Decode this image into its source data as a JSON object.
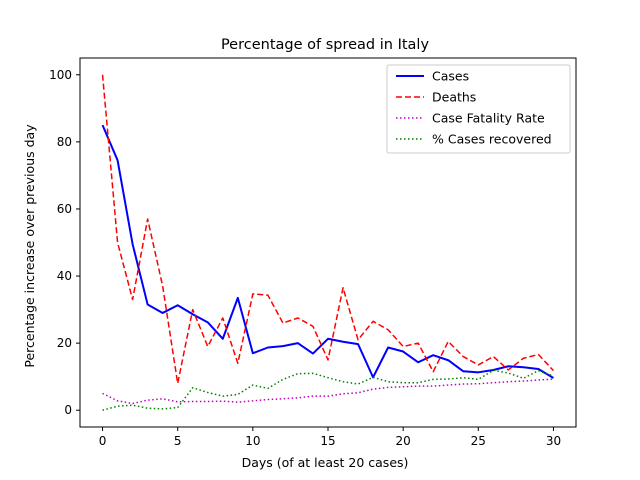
{
  "chart_data": {
    "type": "line",
    "title": "Percentage of spread in Italy",
    "xlabel": "Days (of at least 20 cases)",
    "ylabel": "Percentage increase over previous day",
    "xlim": [
      -1.5,
      31.5
    ],
    "ylim": [
      -5,
      105
    ],
    "xticks": [
      0,
      5,
      10,
      15,
      20,
      25,
      30
    ],
    "yticks": [
      0,
      20,
      40,
      60,
      80,
      100
    ],
    "grid": false,
    "legend_position": "top-right",
    "x": [
      0,
      1,
      2,
      3,
      4,
      5,
      6,
      7,
      8,
      9,
      10,
      11,
      12,
      13,
      14,
      15,
      16,
      17,
      18,
      19,
      20,
      21,
      22,
      23,
      24,
      25,
      26,
      27,
      28,
      29,
      30
    ],
    "series": [
      {
        "name": "Cases",
        "color": "#0000ff",
        "style": "solid",
        "values": [
          85,
          74.5,
          49.5,
          31.5,
          29,
          31.3,
          28.6,
          26.2,
          21.3,
          33.5,
          17,
          18.7,
          19.1,
          20,
          16.9,
          21.3,
          20.4,
          19.7,
          9.8,
          18.7,
          17.5,
          14.3,
          16.4,
          14.9,
          11.6,
          11.3,
          12,
          13.1,
          12.8,
          12.3,
          9.6
        ]
      },
      {
        "name": "Deaths",
        "color": "#ff0000",
        "style": "dashed",
        "values": [
          100,
          50,
          33,
          57,
          37,
          8,
          30,
          19,
          27.5,
          14,
          34.7,
          34.3,
          26,
          27.5,
          25,
          15,
          36.5,
          21,
          26.5,
          24,
          19,
          20,
          11.5,
          20.5,
          16,
          13.5,
          16,
          12,
          15.5,
          16.6,
          11.8
        ]
      },
      {
        "name": "Case Fatality Rate",
        "color": "#bf00bf",
        "style": "dotted",
        "values": [
          5,
          2.8,
          2,
          3,
          3.4,
          2.5,
          2.6,
          2.6,
          2.7,
          2.4,
          2.8,
          3.2,
          3.4,
          3.7,
          4.2,
          4.2,
          4.9,
          5.2,
          6.3,
          6.8,
          7,
          7.2,
          7.2,
          7.5,
          7.8,
          7.9,
          8.2,
          8.5,
          8.7,
          9,
          9.3
        ]
      },
      {
        "name": "% Cases recovered",
        "color": "#008000",
        "style": "dotted",
        "values": [
          0,
          1.2,
          1.5,
          0.6,
          0.4,
          0.8,
          6.7,
          5.3,
          4.2,
          4.7,
          7.5,
          6.5,
          9.2,
          10.9,
          11,
          9.7,
          8.5,
          7.8,
          9.8,
          8.5,
          8.2,
          8.2,
          9.2,
          9.3,
          9.7,
          9.2,
          11.9,
          11.1,
          9.5,
          11.8,
          10.2
        ]
      }
    ]
  }
}
